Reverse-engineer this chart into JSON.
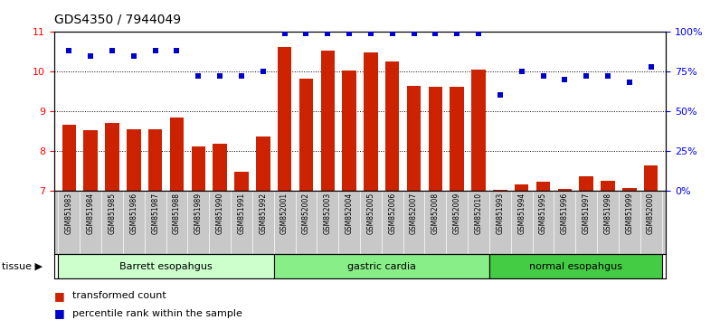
{
  "title": "GDS4350 / 7944049",
  "samples": [
    "GSM851983",
    "GSM851984",
    "GSM851985",
    "GSM851986",
    "GSM851987",
    "GSM851988",
    "GSM851989",
    "GSM851990",
    "GSM851991",
    "GSM851992",
    "GSM852001",
    "GSM852002",
    "GSM852003",
    "GSM852004",
    "GSM852005",
    "GSM852006",
    "GSM852007",
    "GSM852008",
    "GSM852009",
    "GSM852010",
    "GSM851993",
    "GSM851994",
    "GSM851995",
    "GSM851996",
    "GSM851997",
    "GSM851998",
    "GSM851999",
    "GSM852000"
  ],
  "bar_values": [
    8.65,
    8.52,
    8.7,
    8.55,
    8.55,
    8.85,
    8.1,
    8.18,
    7.47,
    8.35,
    10.62,
    9.82,
    10.52,
    10.02,
    10.48,
    10.25,
    9.65,
    9.62,
    9.62,
    10.05,
    7.02,
    7.15,
    7.22,
    7.03,
    7.35,
    7.25,
    7.05,
    7.62
  ],
  "dot_values": [
    88,
    85,
    88,
    85,
    88,
    88,
    72,
    72,
    72,
    75,
    99,
    99,
    99,
    99,
    99,
    99,
    99,
    99,
    99,
    99,
    60,
    75,
    72,
    70,
    72,
    72,
    68,
    78
  ],
  "groups": [
    {
      "label": "Barrett esopahgus",
      "start": 0,
      "end": 10,
      "color": "#ccffcc"
    },
    {
      "label": "gastric cardia",
      "start": 10,
      "end": 20,
      "color": "#88ee88"
    },
    {
      "label": "normal esopahgus",
      "start": 20,
      "end": 28,
      "color": "#44cc44"
    }
  ],
  "ylim_left": [
    7,
    11
  ],
  "ylim_right": [
    0,
    100
  ],
  "yticks_left": [
    7,
    8,
    9,
    10,
    11
  ],
  "yticks_right": [
    0,
    25,
    50,
    75,
    100
  ],
  "ytick_labels_right": [
    "0%",
    "25%",
    "50%",
    "75%",
    "100%"
  ],
  "bar_color": "#cc2200",
  "dot_color": "#0000cc",
  "xtick_bg": "#c8c8c8",
  "legend_bar": "transformed count",
  "legend_dot": "percentile rank within the sample"
}
